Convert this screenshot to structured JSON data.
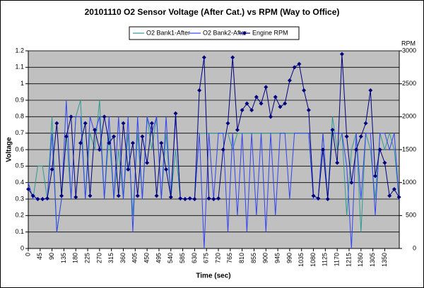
{
  "chart_data": {
    "type": "line",
    "title": "20101110 O2 Sensor Voltage (After Cat.) vs RPM (Way to Office)",
    "x_label": "Time (sec)",
    "y_label": "Voltage",
    "y2_label": "RPM",
    "x": [
      0,
      18,
      36,
      54,
      72,
      90,
      108,
      126,
      144,
      162,
      180,
      198,
      216,
      234,
      252,
      270,
      288,
      306,
      324,
      342,
      360,
      378,
      396,
      414,
      432,
      450,
      468,
      486,
      504,
      522,
      540,
      558,
      576,
      594,
      612,
      630,
      648,
      666,
      684,
      702,
      720,
      738,
      756,
      774,
      792,
      810,
      828,
      846,
      864,
      882,
      900,
      918,
      936,
      954,
      972,
      990,
      1008,
      1026,
      1044,
      1062,
      1080,
      1098,
      1116,
      1134,
      1152,
      1170,
      1188,
      1206,
      1224,
      1242,
      1260,
      1278,
      1296,
      1314,
      1332,
      1350,
      1368,
      1386,
      1404
    ],
    "xlim": [
      0,
      1405
    ],
    "xticks": [
      0,
      45,
      90,
      135,
      180,
      225,
      270,
      315,
      360,
      405,
      450,
      495,
      540,
      585,
      630,
      675,
      720,
      765,
      810,
      855,
      900,
      945,
      990,
      1035,
      1080,
      1125,
      1170,
      1215,
      1260,
      1305,
      1350
    ],
    "ylim": [
      0,
      1.2
    ],
    "yticks": [
      0,
      0.1,
      0.2,
      0.3,
      0.4,
      0.5,
      0.6,
      0.7,
      0.8,
      0.9,
      1,
      1.1,
      1.2
    ],
    "y2lim": [
      0,
      3000
    ],
    "y2ticks": [
      0,
      500,
      1000,
      1500,
      2000,
      2500,
      3000
    ],
    "grid": true,
    "legend": "top",
    "series": [
      {
        "name": "O2 Bank1-After",
        "color": "#2f9a96",
        "values": [
          0.4,
          0.3,
          0.5,
          0.5,
          0.3,
          0.8,
          0.1,
          0.3,
          0.7,
          0.3,
          0.8,
          0.9,
          0.3,
          0.7,
          0.6,
          0.9,
          0.3,
          0.7,
          0.3,
          0.6,
          0.3,
          0.7,
          0.2,
          0.7,
          0.3,
          0.8,
          0.6,
          0.8,
          0.3,
          0.7,
          0.3,
          0.6,
          0.3,
          0.3,
          0.3,
          0.3,
          0.7,
          0.7,
          0.7,
          0.7,
          0.7,
          0.7,
          0.7,
          0.6,
          0.7,
          0.7,
          0.7,
          0.7,
          0.7,
          0.7,
          0.7,
          0.7,
          0.7,
          0.7,
          0.7,
          0.7,
          0.7,
          0.7,
          0.7,
          0.7,
          0.3,
          0.3,
          0.7,
          0.3,
          0.8,
          0.6,
          0.7,
          0.2,
          0.6,
          0.7,
          0.1,
          0.7,
          0.6,
          0.3,
          0.7,
          0.6,
          0.7,
          0.6,
          0.3
        ]
      },
      {
        "name": "O2 Bank2-After",
        "color": "#3344ee",
        "values": [
          0.4,
          0.3,
          0.3,
          0.3,
          0.3,
          0.7,
          0.1,
          0.3,
          0.9,
          0.3,
          0.8,
          0.8,
          0.3,
          0.8,
          0.7,
          0.8,
          0.3,
          0.8,
          0.3,
          0.8,
          0.3,
          0.8,
          0.1,
          0.8,
          0.3,
          0.8,
          0.7,
          0.8,
          0.3,
          0.8,
          0.3,
          0.8,
          0.3,
          0.3,
          0.3,
          0.3,
          0.7,
          0.0,
          0.7,
          0.3,
          0.7,
          0.7,
          0.1,
          0.7,
          0.2,
          0.7,
          0.1,
          0.7,
          0.2,
          0.7,
          0.1,
          0.7,
          0.2,
          0.7,
          0.7,
          0.3,
          0.7,
          0.7,
          0.7,
          0.7,
          0.3,
          0.3,
          0.7,
          0.3,
          0.7,
          0.7,
          0.7,
          0.5,
          0.0,
          0.7,
          0.3,
          0.7,
          0.7,
          0.2,
          0.7,
          0.7,
          0.6,
          0.7,
          0.3
        ]
      },
      {
        "name": "Engine RPM",
        "color": "#000080",
        "axis": "y2",
        "marker": "diamond",
        "values": [
          900,
          800,
          750,
          750,
          760,
          1200,
          1900,
          800,
          1700,
          2000,
          780,
          1600,
          1900,
          800,
          1800,
          1500,
          2000,
          1600,
          1700,
          800,
          1900,
          1200,
          1600,
          800,
          1700,
          1300,
          1900,
          800,
          1600,
          1200,
          780,
          2050,
          760,
          750,
          760,
          750,
          2400,
          2900,
          760,
          750,
          760,
          1500,
          1900,
          2900,
          1800,
          2100,
          2200,
          2100,
          2300,
          2200,
          2450,
          2000,
          2300,
          2150,
          2200,
          2550,
          2750,
          2800,
          2400,
          2100,
          800,
          760,
          1500,
          750,
          1800,
          1300,
          2950,
          1700,
          1000,
          1500,
          1700,
          1900,
          2400,
          1100,
          1500,
          1300,
          800,
          900,
          780
        ]
      }
    ]
  }
}
